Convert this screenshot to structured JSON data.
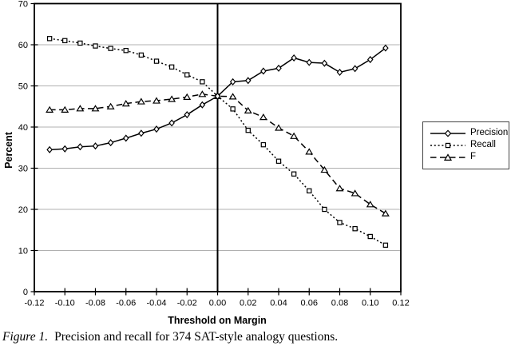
{
  "figure": {
    "caption_label": "Figure 1.",
    "caption_text": "Precision and recall for 374 SAT-style analogy questions."
  },
  "chart_data": {
    "type": "line",
    "title": "",
    "xlabel": "Threshold on Margin",
    "ylabel": "Percent",
    "xlim": [
      -0.12,
      0.12
    ],
    "ylim": [
      0,
      70
    ],
    "grid": "horizontal",
    "legend_position": "right-outside",
    "reference_line_x": 0.0,
    "colors": {
      "line": "#000000",
      "gridline": "#b0b0b0",
      "background": "#ffffff",
      "marker_fill": "#ffffff"
    },
    "x_ticks": [
      "-0.12",
      "-0.10",
      "-0.08",
      "-0.06",
      "-0.04",
      "-0.02",
      "0.00",
      "0.02",
      "0.04",
      "0.06",
      "0.08",
      "0.10",
      "0.12"
    ],
    "x_tick_values": [
      -0.12,
      -0.1,
      -0.08,
      -0.06,
      -0.04,
      -0.02,
      0.0,
      0.02,
      0.04,
      0.06,
      0.08,
      0.1,
      0.12
    ],
    "y_ticks": [
      "0",
      "10",
      "20",
      "30",
      "40",
      "50",
      "60",
      "70"
    ],
    "y_tick_values": [
      0,
      10,
      20,
      30,
      40,
      50,
      60,
      70
    ],
    "x": [
      -0.11,
      -0.1,
      -0.09,
      -0.08,
      -0.07,
      -0.06,
      -0.05,
      -0.04,
      -0.03,
      -0.02,
      -0.01,
      0.0,
      0.01,
      0.02,
      0.03,
      0.04,
      0.05,
      0.06,
      0.07,
      0.08,
      0.09,
      0.1,
      0.11
    ],
    "series": [
      {
        "name": "Precision",
        "marker": "diamond",
        "line_style": "solid",
        "values": [
          34.5,
          34.7,
          35.2,
          35.4,
          36.2,
          37.3,
          38.5,
          39.5,
          41.0,
          43.0,
          45.4,
          47.5,
          51.0,
          51.3,
          53.6,
          54.3,
          56.8,
          55.7,
          55.5,
          53.3,
          54.2,
          56.4,
          59.2
        ]
      },
      {
        "name": "Recall",
        "marker": "square",
        "line_style": "dotted",
        "values": [
          61.5,
          61.0,
          60.4,
          59.7,
          59.1,
          58.6,
          57.5,
          56.0,
          54.6,
          52.7,
          51.0,
          47.5,
          44.4,
          39.2,
          35.7,
          31.7,
          28.6,
          24.5,
          20.0,
          16.8,
          15.3,
          13.4,
          11.3
        ]
      },
      {
        "name": "F",
        "marker": "triangle",
        "line_style": "dashed",
        "values": [
          44.2,
          44.2,
          44.5,
          44.5,
          45.0,
          45.7,
          46.2,
          46.4,
          46.8,
          47.3,
          48.0,
          47.5,
          47.4,
          44.0,
          42.4,
          39.8,
          37.8,
          34.0,
          29.6,
          25.1,
          23.9,
          21.2,
          19.0
        ]
      }
    ]
  }
}
